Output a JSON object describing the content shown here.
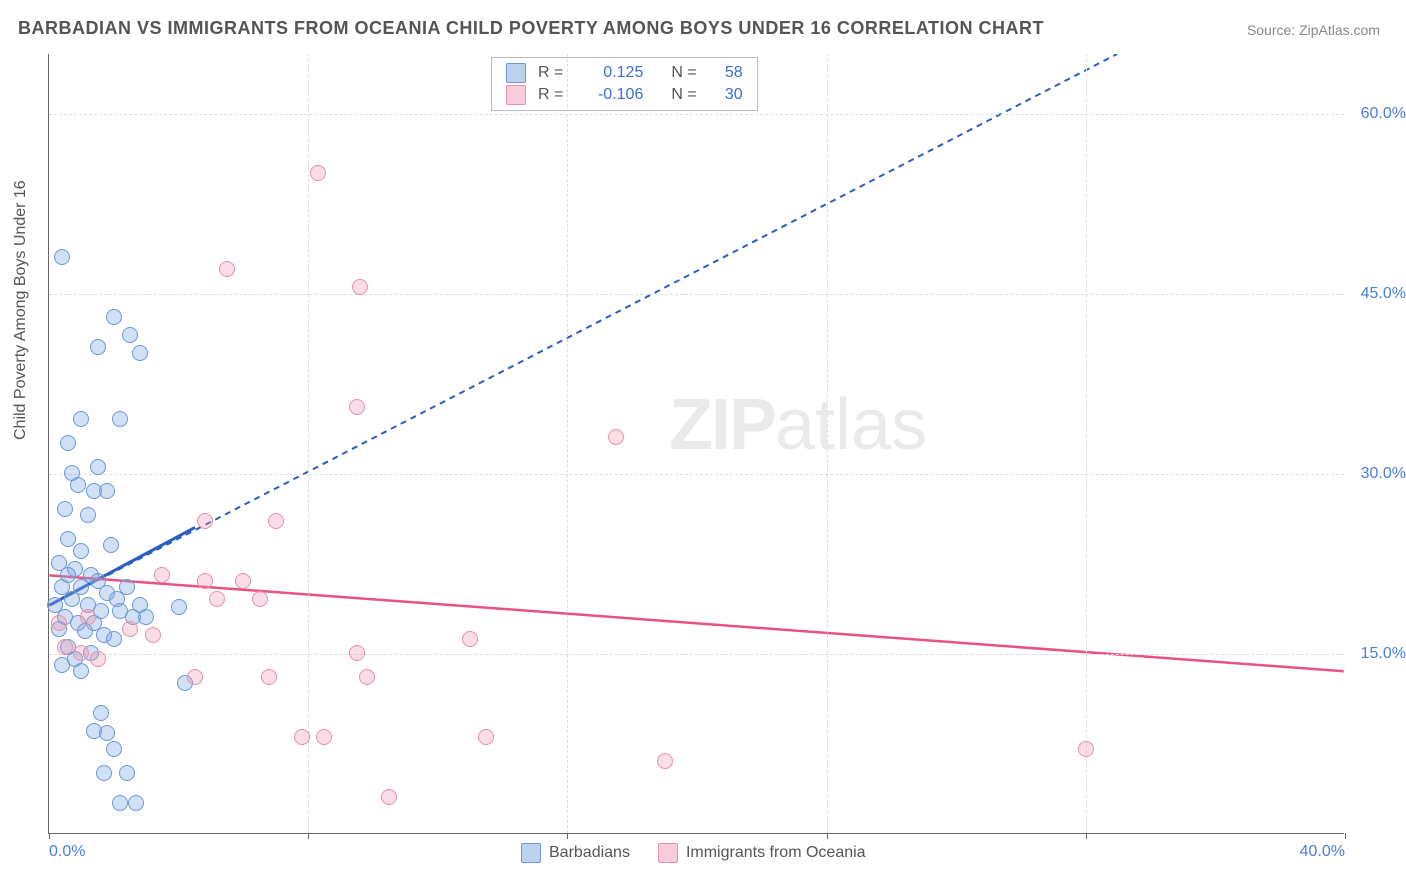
{
  "title": "BARBADIAN VS IMMIGRANTS FROM OCEANIA CHILD POVERTY AMONG BOYS UNDER 16 CORRELATION CHART",
  "source": "Source: ZipAtlas.com",
  "watermark": {
    "bold": "ZIP",
    "rest": "atlas"
  },
  "y_axis_title": "Child Poverty Among Boys Under 16",
  "chart": {
    "type": "scatter",
    "xlim": [
      0,
      40
    ],
    "ylim": [
      0,
      65
    ],
    "x_ticks": [
      0,
      8,
      16,
      24,
      32,
      40
    ],
    "x_tick_labels": [
      "0.0%",
      "",
      "",
      "",
      "",
      "40.0%"
    ],
    "y_ticks": [
      15,
      30,
      45,
      60
    ],
    "y_tick_labels": [
      "15.0%",
      "30.0%",
      "45.0%",
      "60.0%"
    ],
    "background_color": "#ffffff",
    "grid_color": "#dddddd",
    "axis_color": "#666666",
    "tick_label_color": "#4a7fd8",
    "marker_size": 16
  },
  "series": [
    {
      "name": "Barbadians",
      "color_fill": "rgba(122,165,224,0.35)",
      "color_stroke": "#6a98d8",
      "line_color": "#2a5fc0",
      "line_dash": "6,5",
      "line_width": 2,
      "solid_segment": {
        "x1": 0,
        "y1": 19,
        "x2": 4.5,
        "y2": 25.5
      },
      "trend": {
        "x1": 0,
        "y1": 19,
        "x2": 33,
        "y2": 65
      },
      "R": "0.125",
      "N": "58",
      "points": [
        [
          0.4,
          48
        ],
        [
          2.0,
          43
        ],
        [
          2.5,
          41.5
        ],
        [
          2.8,
          40
        ],
        [
          1.5,
          40.5
        ],
        [
          1.0,
          34.5
        ],
        [
          2.2,
          34.5
        ],
        [
          0.6,
          32.5
        ],
        [
          0.9,
          29
        ],
        [
          1.4,
          28.5
        ],
        [
          1.8,
          28.5
        ],
        [
          0.5,
          27
        ],
        [
          1.2,
          26.5
        ],
        [
          0.3,
          22.5
        ],
        [
          0.8,
          22.0
        ],
        [
          0.6,
          21.5
        ],
        [
          1.3,
          21.5
        ],
        [
          1.5,
          21.0
        ],
        [
          0.4,
          20.5
        ],
        [
          1.0,
          20.5
        ],
        [
          1.8,
          20.0
        ],
        [
          2.1,
          19.5
        ],
        [
          0.7,
          19.5
        ],
        [
          0.2,
          19.0
        ],
        [
          1.2,
          19.0
        ],
        [
          1.6,
          18.5
        ],
        [
          2.2,
          18.5
        ],
        [
          2.6,
          18.0
        ],
        [
          0.5,
          18.0
        ],
        [
          0.9,
          17.5
        ],
        [
          1.4,
          17.5
        ],
        [
          0.3,
          17.0
        ],
        [
          1.1,
          16.8
        ],
        [
          1.7,
          16.5
        ],
        [
          2.0,
          16.2
        ],
        [
          0.6,
          15.5
        ],
        [
          1.3,
          15.0
        ],
        [
          0.8,
          14.5
        ],
        [
          0.4,
          14.0
        ],
        [
          1.0,
          13.5
        ],
        [
          4.2,
          12.5
        ],
        [
          4.0,
          18.8
        ],
        [
          1.6,
          10.0
        ],
        [
          1.4,
          8.5
        ],
        [
          1.8,
          8.3
        ],
        [
          2.0,
          7.0
        ],
        [
          1.7,
          5.0
        ],
        [
          2.4,
          5.0
        ],
        [
          2.2,
          2.5
        ],
        [
          2.7,
          2.5
        ],
        [
          0.6,
          24.5
        ],
        [
          1.9,
          24.0
        ],
        [
          1.0,
          23.5
        ],
        [
          2.4,
          20.5
        ],
        [
          2.8,
          19.0
        ],
        [
          3.0,
          18.0
        ],
        [
          0.7,
          30.0
        ],
        [
          1.5,
          30.5
        ]
      ]
    },
    {
      "name": "Immigrants from Oceania",
      "color_fill": "rgba(240,143,170,0.30)",
      "color_stroke": "#e890aa",
      "line_color": "#e8537f",
      "line_dash": "",
      "line_width": 2.5,
      "trend": {
        "x1": 0,
        "y1": 21.5,
        "x2": 40,
        "y2": 13.5
      },
      "R": "-0.106",
      "N": "30",
      "points": [
        [
          8.3,
          55
        ],
        [
          5.5,
          47
        ],
        [
          9.6,
          45.5
        ],
        [
          9.5,
          35.5
        ],
        [
          17.5,
          33
        ],
        [
          4.8,
          26
        ],
        [
          7.0,
          26
        ],
        [
          3.5,
          21.5
        ],
        [
          4.8,
          21
        ],
        [
          6.0,
          21
        ],
        [
          5.2,
          19.5
        ],
        [
          6.5,
          19.5
        ],
        [
          2.5,
          17.0
        ],
        [
          3.2,
          16.5
        ],
        [
          0.5,
          15.5
        ],
        [
          1.0,
          15.0
        ],
        [
          1.5,
          14.5
        ],
        [
          0.3,
          17.5
        ],
        [
          1.2,
          18.0
        ],
        [
          4.5,
          13.0
        ],
        [
          6.8,
          13.0
        ],
        [
          13.0,
          16.2
        ],
        [
          9.5,
          15.0
        ],
        [
          7.8,
          8.0
        ],
        [
          8.5,
          8.0
        ],
        [
          13.5,
          8.0
        ],
        [
          19.0,
          6.0
        ],
        [
          32.0,
          7.0
        ],
        [
          10.5,
          3.0
        ],
        [
          9.8,
          13.0
        ]
      ]
    }
  ],
  "stat_legend": {
    "r_label": "R =",
    "n_label": "N ="
  },
  "bottom_legend": {
    "items": [
      "Barbadians",
      "Immigrants from Oceania"
    ]
  }
}
